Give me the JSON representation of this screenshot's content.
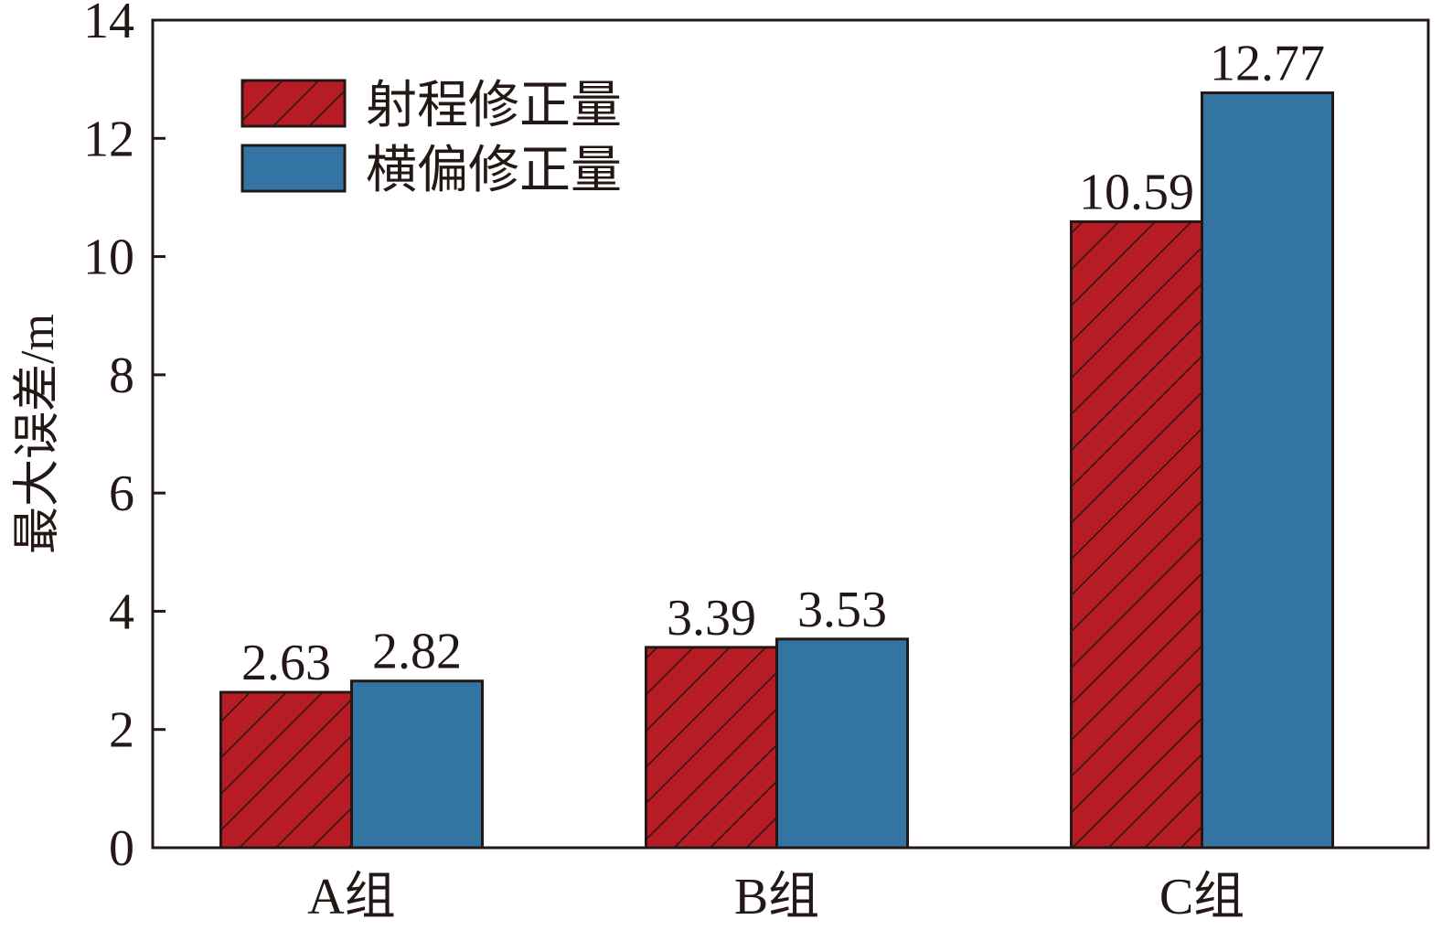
{
  "chart_data": {
    "type": "bar",
    "categories": [
      "A组",
      "B组",
      "C组"
    ],
    "series": [
      {
        "name": "射程修正量",
        "values": [
          2.63,
          3.39,
          10.59
        ],
        "color": "#b71c24",
        "pattern": "hatch"
      },
      {
        "name": "横偏修正量",
        "values": [
          2.82,
          3.53,
          12.77
        ],
        "color": "#3474a3",
        "pattern": "solid"
      }
    ],
    "data_labels": [
      [
        "2.63",
        "3.39",
        "10.59"
      ],
      [
        "2.82",
        "3.53",
        "12.77"
      ]
    ],
    "ylabel": "最大误差/m",
    "xlabel": "",
    "ylim": [
      0,
      14
    ],
    "yticks": [
      0,
      2,
      4,
      6,
      8,
      10,
      12,
      14
    ],
    "ytick_labels": [
      "0",
      "2",
      "4",
      "6",
      "8",
      "10",
      "12",
      "14"
    ],
    "legend_position": "top-left",
    "grid": false
  }
}
